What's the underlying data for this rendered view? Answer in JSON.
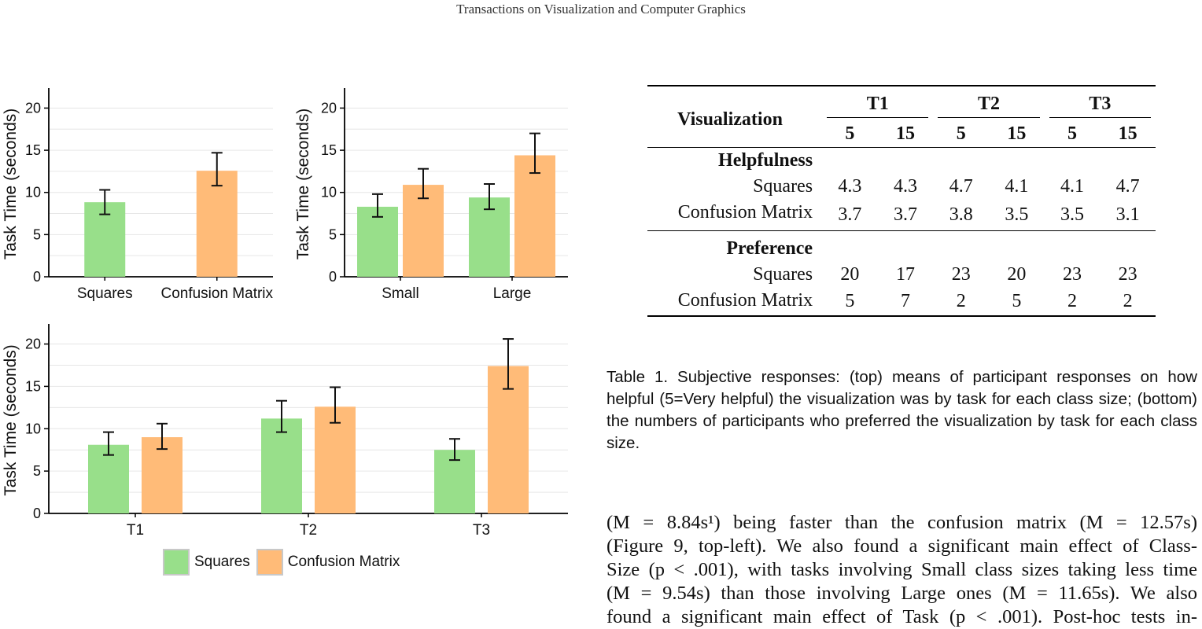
{
  "header": {
    "journal": "Transactions on Visualization and Computer Graphics"
  },
  "colors": {
    "squares": "#98df8a",
    "confusion": "#ffbb78",
    "axis": "#000000",
    "grid": "#e6e6e6"
  },
  "chart_data": [
    {
      "type": "bar",
      "ylabel": "Task Time (seconds)",
      "ylim": [
        0,
        22
      ],
      "yticks": [
        0,
        5,
        10,
        15,
        20
      ],
      "categories": [
        "Squares",
        "Confusion Matrix"
      ],
      "series": [
        {
          "name": "Squares",
          "values": [
            8.84,
            null
          ],
          "err_low": [
            7.4,
            null
          ],
          "err_high": [
            10.3,
            null
          ]
        },
        {
          "name": "Confusion Matrix",
          "values": [
            null,
            12.57
          ],
          "err_low": [
            null,
            10.8
          ],
          "err_high": [
            null,
            14.7
          ]
        }
      ]
    },
    {
      "type": "bar",
      "ylabel": "Task Time (seconds)",
      "ylim": [
        0,
        22
      ],
      "yticks": [
        0,
        5,
        10,
        15,
        20
      ],
      "categories": [
        "Small",
        "Large"
      ],
      "series": [
        {
          "name": "Squares",
          "values": [
            8.3,
            9.4
          ],
          "err_low": [
            7.1,
            8.0
          ],
          "err_high": [
            9.8,
            11.0
          ]
        },
        {
          "name": "Confusion Matrix",
          "values": [
            10.9,
            14.4
          ],
          "err_low": [
            9.3,
            12.3
          ],
          "err_high": [
            12.8,
            17.0
          ]
        }
      ]
    },
    {
      "type": "bar",
      "ylabel": "Task Time (seconds)",
      "ylim": [
        0,
        22
      ],
      "yticks": [
        0,
        5,
        10,
        15,
        20
      ],
      "categories": [
        "T1",
        "T2",
        "T3"
      ],
      "series": [
        {
          "name": "Squares",
          "values": [
            8.1,
            11.2,
            7.5
          ],
          "err_low": [
            6.9,
            9.6,
            6.3
          ],
          "err_high": [
            9.6,
            13.3,
            8.8
          ]
        },
        {
          "name": "Confusion Matrix",
          "values": [
            9.0,
            12.6,
            17.4
          ],
          "err_low": [
            7.6,
            10.7,
            14.7
          ],
          "err_high": [
            10.6,
            14.9,
            20.6
          ]
        }
      ]
    }
  ],
  "legend": {
    "items": [
      "Squares",
      "Confusion Matrix"
    ]
  },
  "table": {
    "corner": "Visualization",
    "tasks": [
      "T1",
      "T2",
      "T3"
    ],
    "sizes": [
      "5",
      "15",
      "5",
      "15",
      "5",
      "15"
    ],
    "sections": [
      {
        "title": "Helpfulness",
        "rows": [
          {
            "label": "Squares",
            "values": [
              "4.3",
              "4.3",
              "4.7",
              "4.1",
              "4.1",
              "4.7"
            ]
          },
          {
            "label": "Confusion Matrix",
            "values": [
              "3.7",
              "3.7",
              "3.8",
              "3.5",
              "3.5",
              "3.1"
            ]
          }
        ]
      },
      {
        "title": "Preference",
        "rows": [
          {
            "label": "Squares",
            "values": [
              "20",
              "17",
              "23",
              "20",
              "23",
              "23"
            ]
          },
          {
            "label": "Confusion Matrix",
            "values": [
              "5",
              "7",
              "2",
              "5",
              "2",
              "2"
            ]
          }
        ]
      }
    ]
  },
  "caption": "Table 1.   Subjective responses: (top) means of participant responses on how helpful (5=Very helpful) the visualization was by task for each class size; (bottom) the numbers of participants who preferred the visualization by task for each class size.",
  "paragraph_lines": [
    "(M = 8.84s¹) being faster than the confusion matrix (M = 12.57s)",
    "(Figure 9, top-left). We also found a significant main effect of Class-",
    "Size (p < .001), with tasks involving Small class sizes taking less time",
    "(M = 9.54s) than those involving Large ones (M = 11.65s). We also",
    "found a significant main effect of Task (p < .001). Post-hoc tests in-"
  ]
}
